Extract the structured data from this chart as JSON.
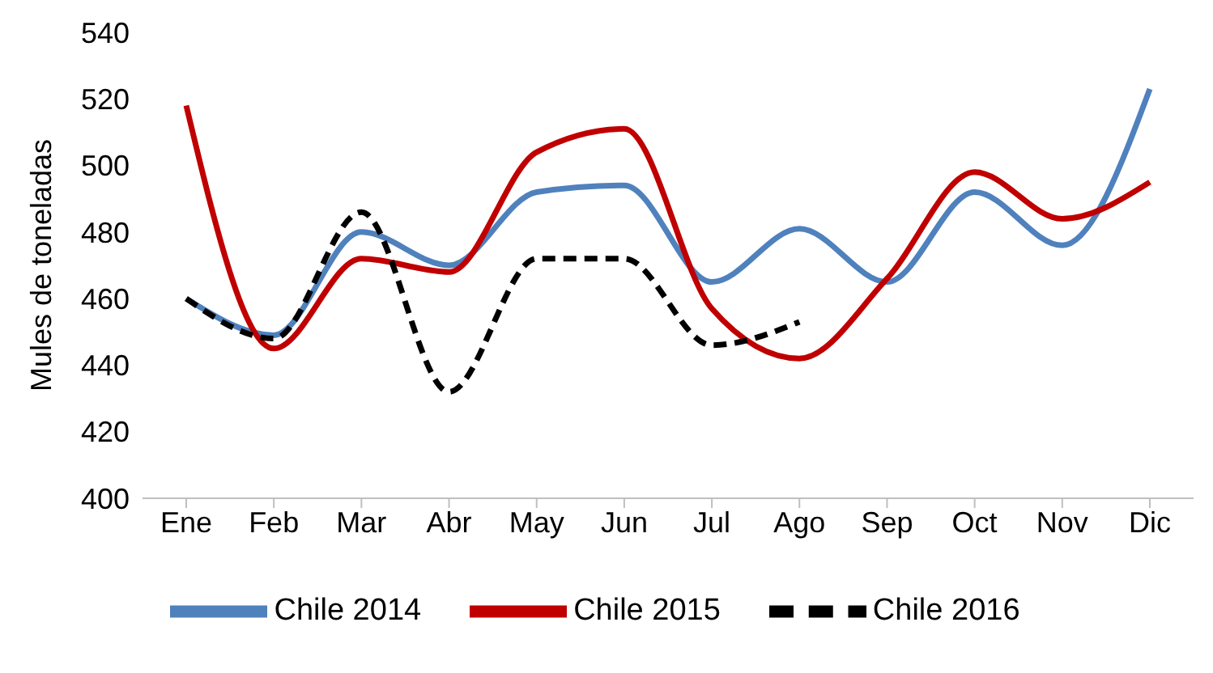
{
  "chart_data": {
    "type": "line",
    "ylabel": "Mules de toneladas",
    "categories": [
      "Ene",
      "Feb",
      "Mar",
      "Abr",
      "May",
      "Jun",
      "Jul",
      "Ago",
      "Sep",
      "Oct",
      "Nov",
      "Dic"
    ],
    "series": [
      {
        "name": "Chile 2014",
        "color": "#4f81bd",
        "values": [
          460,
          449,
          480,
          470,
          492,
          494,
          465,
          481,
          465,
          492,
          476,
          523
        ]
      },
      {
        "name": "Chile 2015",
        "color": "#c00000",
        "values": [
          518,
          445,
          472,
          468,
          504,
          511,
          457,
          442,
          466,
          498,
          484,
          495
        ]
      },
      {
        "name": "Chile 2016",
        "color": "#000000",
        "line_style": "dashed",
        "values": [
          460,
          448,
          486,
          432,
          472,
          472,
          446,
          453,
          null,
          null,
          null,
          null
        ]
      }
    ],
    "ylim": [
      400,
      540
    ],
    "yticks": [
      400,
      420,
      440,
      460,
      480,
      500,
      520,
      540
    ],
    "grid": false,
    "legend": "bottom",
    "marker": "none"
  }
}
